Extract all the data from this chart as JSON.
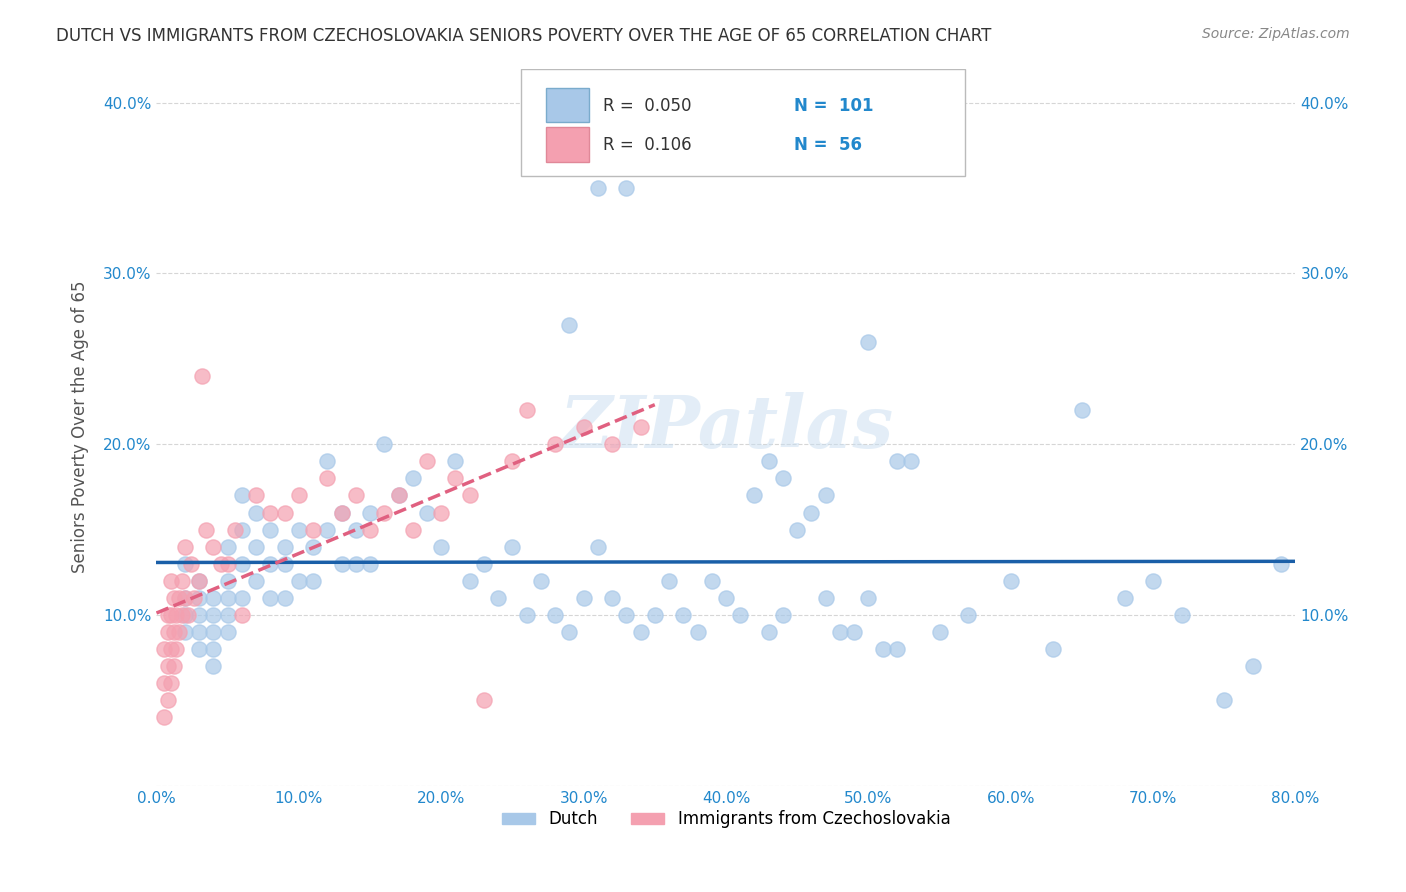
{
  "title": "DUTCH VS IMMIGRANTS FROM CZECHOSLOVAKIA SENIORS POVERTY OVER THE AGE OF 65 CORRELATION CHART",
  "source": "Source: ZipAtlas.com",
  "ylabel": "Seniors Poverty Over the Age of 65",
  "xlabel": "",
  "xlim": [
    0.0,
    0.8
  ],
  "ylim": [
    0.0,
    0.42
  ],
  "xticks": [
    0.0,
    0.1,
    0.2,
    0.3,
    0.4,
    0.5,
    0.6,
    0.7,
    0.8
  ],
  "yticks": [
    0.0,
    0.1,
    0.2,
    0.3,
    0.4
  ],
  "ytick_labels": [
    "",
    "10.0%",
    "20.0%",
    "30.0%",
    "40.0%"
  ],
  "xtick_labels": [
    "0.0%",
    "10.0%",
    "20.0%",
    "30.0%",
    "40.0%",
    "50.0%",
    "60.0%",
    "70.0%",
    "80.0%"
  ],
  "legend_r1": "R =  0.050",
  "legend_n1": "N =  101",
  "legend_r2": "R =  0.106",
  "legend_n2": "N =  56",
  "dutch_color": "#a8c8e8",
  "czech_color": "#f4a0b0",
  "dutch_line_color": "#1a5fa8",
  "czech_line_color": "#e06080",
  "title_color": "#333333",
  "source_color": "#888888",
  "axis_label_color": "#555555",
  "tick_color": "#2288cc",
  "watermark": "ZIPatlas",
  "dutch_x": [
    0.02,
    0.02,
    0.02,
    0.02,
    0.03,
    0.03,
    0.03,
    0.03,
    0.03,
    0.04,
    0.04,
    0.04,
    0.04,
    0.04,
    0.05,
    0.05,
    0.05,
    0.05,
    0.05,
    0.06,
    0.06,
    0.06,
    0.06,
    0.07,
    0.07,
    0.07,
    0.08,
    0.08,
    0.08,
    0.09,
    0.09,
    0.09,
    0.1,
    0.1,
    0.11,
    0.11,
    0.12,
    0.12,
    0.13,
    0.13,
    0.14,
    0.14,
    0.15,
    0.15,
    0.16,
    0.17,
    0.18,
    0.19,
    0.2,
    0.21,
    0.22,
    0.23,
    0.24,
    0.25,
    0.26,
    0.27,
    0.28,
    0.29,
    0.3,
    0.31,
    0.32,
    0.33,
    0.34,
    0.35,
    0.36,
    0.37,
    0.38,
    0.39,
    0.4,
    0.41,
    0.42,
    0.43,
    0.44,
    0.45,
    0.46,
    0.47,
    0.48,
    0.49,
    0.5,
    0.51,
    0.52,
    0.55,
    0.57,
    0.6,
    0.63,
    0.65,
    0.68,
    0.7,
    0.72,
    0.75,
    0.77,
    0.79,
    0.5,
    0.52,
    0.53,
    0.43,
    0.44,
    0.47,
    0.29,
    0.31,
    0.33
  ],
  "dutch_y": [
    0.13,
    0.11,
    0.1,
    0.09,
    0.12,
    0.11,
    0.1,
    0.09,
    0.08,
    0.11,
    0.1,
    0.09,
    0.08,
    0.07,
    0.14,
    0.12,
    0.11,
    0.1,
    0.09,
    0.17,
    0.15,
    0.13,
    0.11,
    0.16,
    0.14,
    0.12,
    0.15,
    0.13,
    0.11,
    0.14,
    0.13,
    0.11,
    0.15,
    0.12,
    0.14,
    0.12,
    0.19,
    0.15,
    0.16,
    0.13,
    0.15,
    0.13,
    0.16,
    0.13,
    0.2,
    0.17,
    0.18,
    0.16,
    0.14,
    0.19,
    0.12,
    0.13,
    0.11,
    0.14,
    0.1,
    0.12,
    0.1,
    0.09,
    0.11,
    0.14,
    0.11,
    0.1,
    0.09,
    0.1,
    0.12,
    0.1,
    0.09,
    0.12,
    0.11,
    0.1,
    0.17,
    0.09,
    0.1,
    0.15,
    0.16,
    0.11,
    0.09,
    0.09,
    0.11,
    0.08,
    0.08,
    0.09,
    0.1,
    0.12,
    0.08,
    0.22,
    0.11,
    0.12,
    0.1,
    0.05,
    0.07,
    0.13,
    0.26,
    0.19,
    0.19,
    0.19,
    0.18,
    0.17,
    0.27,
    0.35,
    0.35
  ],
  "czech_x": [
    0.005,
    0.005,
    0.005,
    0.008,
    0.008,
    0.008,
    0.008,
    0.01,
    0.01,
    0.01,
    0.01,
    0.012,
    0.012,
    0.012,
    0.014,
    0.014,
    0.016,
    0.016,
    0.018,
    0.018,
    0.02,
    0.02,
    0.022,
    0.024,
    0.026,
    0.03,
    0.032,
    0.035,
    0.04,
    0.045,
    0.05,
    0.055,
    0.06,
    0.07,
    0.08,
    0.09,
    0.1,
    0.11,
    0.12,
    0.13,
    0.14,
    0.15,
    0.16,
    0.17,
    0.18,
    0.19,
    0.2,
    0.21,
    0.22,
    0.23,
    0.25,
    0.26,
    0.28,
    0.3,
    0.32,
    0.34
  ],
  "czech_y": [
    0.04,
    0.06,
    0.08,
    0.05,
    0.07,
    0.09,
    0.1,
    0.06,
    0.08,
    0.1,
    0.12,
    0.07,
    0.09,
    0.11,
    0.08,
    0.1,
    0.09,
    0.11,
    0.1,
    0.12,
    0.11,
    0.14,
    0.1,
    0.13,
    0.11,
    0.12,
    0.24,
    0.15,
    0.14,
    0.13,
    0.13,
    0.15,
    0.1,
    0.17,
    0.16,
    0.16,
    0.17,
    0.15,
    0.18,
    0.16,
    0.17,
    0.15,
    0.16,
    0.17,
    0.15,
    0.19,
    0.16,
    0.18,
    0.17,
    0.05,
    0.19,
    0.22,
    0.2,
    0.21,
    0.2,
    0.21
  ]
}
